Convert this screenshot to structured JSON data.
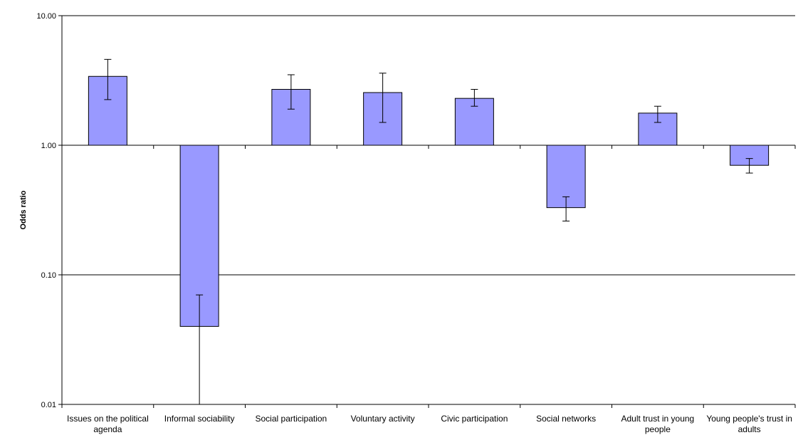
{
  "chart_data": {
    "type": "bar",
    "y_label": "Odds ratio",
    "categories": [
      "Issues on the political agenda",
      "Informal sociability",
      "Social participation",
      "Voluntary activity",
      "Civic participation",
      "Social networks",
      "Adult trust in young people",
      "Young people's trust in adults"
    ],
    "values": [
      3.4,
      0.04,
      2.7,
      2.55,
      2.3,
      0.33,
      1.77,
      0.7
    ],
    "ci_low": [
      2.25,
      0.01,
      1.9,
      1.5,
      2.0,
      0.26,
      1.5,
      0.61
    ],
    "ci_high": [
      4.6,
      0.07,
      3.5,
      3.6,
      2.7,
      0.4,
      2.0,
      0.79
    ],
    "color": "#9999ff",
    "log_scale": true,
    "baseline": 1,
    "ylim": [
      0.01,
      10
    ],
    "yticks": [
      {
        "value": 0.01,
        "label": "0.01"
      },
      {
        "value": 0.1,
        "label": "0.10"
      },
      {
        "value": 1,
        "label": "1.00"
      },
      {
        "value": 10,
        "label": "10.00"
      }
    ],
    "grid": true
  }
}
